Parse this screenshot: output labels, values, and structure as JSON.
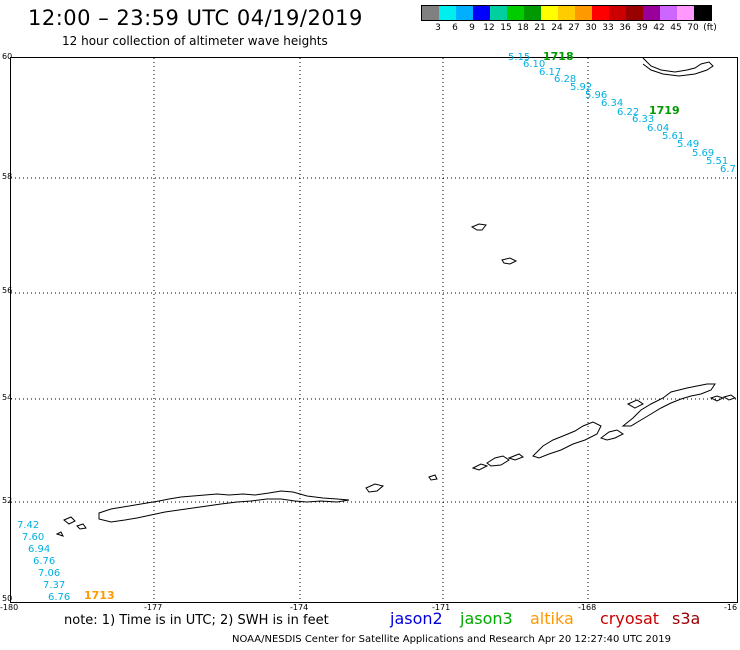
{
  "header": {
    "title": "12:00 – 23:59 UTC 04/19/2019",
    "subtitle": "12 hour collection of altimeter wave heights"
  },
  "legend": {
    "colors": [
      "#808080",
      "#00eeee",
      "#00b0ff",
      "#0000ff",
      "#00d0a0",
      "#00cc00",
      "#009900",
      "#ffff00",
      "#ffcc00",
      "#ff9900",
      "#ff0000",
      "#cc0000",
      "#990000",
      "#990099",
      "#cc66ff",
      "#ff99ff",
      "#000000"
    ],
    "ticks": [
      "3",
      "6",
      "9",
      "12",
      "15",
      "18",
      "21",
      "24",
      "27",
      "30",
      "33",
      "36",
      "39",
      "42",
      "45",
      "70",
      "(ft)"
    ]
  },
  "axes": {
    "y_labels": [
      "60",
      "58",
      "56",
      "54",
      "52",
      "50"
    ],
    "x_labels": [
      "-180",
      "-177",
      "-174",
      "-171",
      "-168",
      "-16"
    ]
  },
  "tracks": {
    "track_1718": {
      "hour_label": "1718",
      "hour_color": "#009900",
      "values": [
        "5.15",
        "6.10",
        "6.17",
        "6.28",
        "5.92",
        "5.96",
        "6.34",
        "6.22",
        "6.33",
        "6.04",
        "5.61",
        "5.49",
        "5.69",
        "5.51",
        "6.7"
      ]
    },
    "track_1719": {
      "hour_label": "1719",
      "hour_color": "#009900"
    },
    "track_1713": {
      "hour_label": "1713",
      "hour_color": "#ff9900",
      "values": [
        "7.42",
        "7.60",
        "6.94",
        "6.76",
        "7.06",
        "7.37",
        "6.76"
      ]
    }
  },
  "footer": {
    "note": "note: 1) Time is in UTC; 2) SWH is in feet",
    "satellites": [
      {
        "name": "jason2",
        "color": "#0000dd"
      },
      {
        "name": "jason3",
        "color": "#00aa00"
      },
      {
        "name": "altika",
        "color": "#ff9900"
      },
      {
        "name": "cryosat",
        "color": "#cc0000"
      },
      {
        "name": "s3a",
        "color": "#990000"
      }
    ],
    "credit": "NOAA/NESDIS Center for Satellite Applications and Research   Apr 20 12:27:40 UTC 2019"
  }
}
